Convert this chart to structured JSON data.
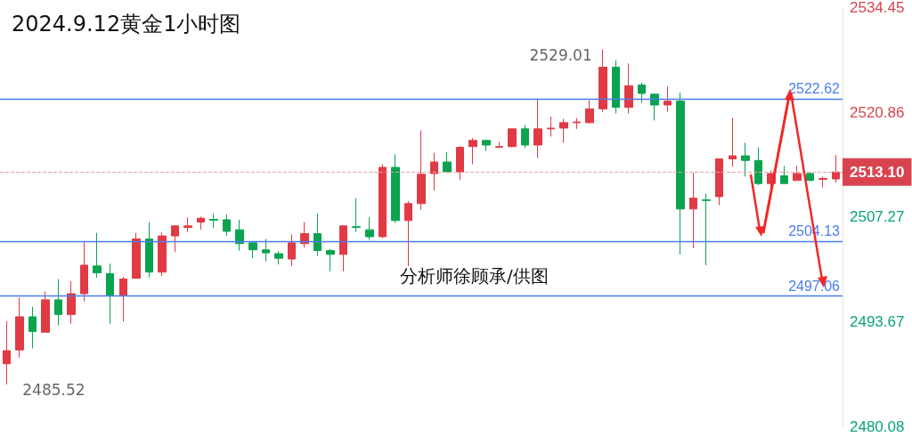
{
  "chart_data": {
    "type": "candlestick",
    "title": "2024.9.12黄金1小时图",
    "categories": [
      null,
      null,
      null,
      null,
      null,
      null,
      null,
      null,
      null,
      null,
      null,
      null,
      null,
      null,
      null,
      null,
      null,
      null,
      null,
      null,
      null,
      null,
      null,
      null,
      null,
      null,
      null,
      null,
      null,
      null,
      null,
      null,
      null,
      null,
      null,
      null,
      null,
      null,
      null,
      null,
      null,
      null,
      null,
      null,
      null,
      null,
      null,
      null,
      null,
      null,
      null,
      null,
      null,
      null,
      null,
      null,
      null,
      null,
      null,
      null,
      null,
      null,
      null,
      null,
      null
    ],
    "ohlc": [
      [
        2488.2,
        2493.7,
        2485.52,
        2489.9
      ],
      [
        2490.0,
        2496.8,
        2489.0,
        2494.3
      ],
      [
        2494.3,
        2495.6,
        2490.2,
        2492.4
      ],
      [
        2492.3,
        2497.6,
        2492.3,
        2496.5
      ],
      [
        2496.5,
        2499.2,
        2493.2,
        2494.6
      ],
      [
        2494.6,
        2498.9,
        2493.4,
        2497.3
      ],
      [
        2497.3,
        2504.1,
        2496.3,
        2501.0
      ],
      [
        2500.9,
        2505.2,
        2499.4,
        2500.0
      ],
      [
        2499.9,
        2501.2,
        2493.4,
        2497.1
      ],
      [
        2497.1,
        2499.5,
        2493.7,
        2499.2
      ],
      [
        2499.3,
        2505.2,
        2499.3,
        2504.4
      ],
      [
        2504.4,
        2506.6,
        2499.4,
        2500.1
      ],
      [
        2500.1,
        2505.2,
        2499.6,
        2504.8
      ],
      [
        2504.8,
        2506.1,
        2502.7,
        2506.1
      ],
      [
        2505.9,
        2507.2,
        2505.3,
        2506.1
      ],
      [
        2506.6,
        2507.3,
        2505.6,
        2507.1
      ],
      [
        2506.95,
        2507.7,
        2505.8,
        2506.85
      ],
      [
        2506.9,
        2507.6,
        2504.8,
        2505.4
      ],
      [
        2505.6,
        2506.9,
        2502.9,
        2503.8
      ],
      [
        2503.9,
        2504.0,
        2501.9,
        2503.0
      ],
      [
        2503.0,
        2504.4,
        2501.5,
        2502.6
      ],
      [
        2502.5,
        2502.8,
        2501.1,
        2501.9
      ],
      [
        2501.8,
        2505.0,
        2500.9,
        2503.9
      ],
      [
        2503.8,
        2506.6,
        2503.3,
        2505.1
      ],
      [
        2505.1,
        2507.7,
        2502.2,
        2502.9
      ],
      [
        2502.9,
        2503.1,
        2500.2,
        2502.4
      ],
      [
        2502.4,
        2506.1,
        2500.2,
        2506.1
      ],
      [
        2506.0,
        2509.7,
        2505.3,
        2505.9
      ],
      [
        2505.6,
        2507.2,
        2504.3,
        2504.7
      ],
      [
        2504.7,
        2514.1,
        2504.5,
        2513.7
      ],
      [
        2513.7,
        2515.4,
        2506.5,
        2506.8
      ],
      [
        2506.8,
        2509.3,
        2500.9,
        2509.0
      ],
      [
        2509.0,
        2518.5,
        2508.2,
        2512.8
      ],
      [
        2512.9,
        2515.6,
        2510.7,
        2514.4
      ],
      [
        2514.4,
        2515.7,
        2513.0,
        2513.1
      ],
      [
        2513.1,
        2516.5,
        2512.1,
        2516.3
      ],
      [
        2516.4,
        2517.5,
        2514.1,
        2517.2
      ],
      [
        2517.2,
        2517.3,
        2515.8,
        2516.6
      ],
      [
        2516.3,
        2517.0,
        2516.3,
        2516.4
      ],
      [
        2516.4,
        2518.7,
        2516.3,
        2518.7
      ],
      [
        2518.7,
        2519.2,
        2516.2,
        2516.6
      ],
      [
        2516.6,
        2522.5,
        2514.9,
        2518.7
      ],
      [
        2518.7,
        2520.3,
        2517.7,
        2518.8
      ],
      [
        2518.8,
        2520.0,
        2516.9,
        2519.5
      ],
      [
        2519.5,
        2520.1,
        2518.7,
        2519.6
      ],
      [
        2519.5,
        2522.4,
        2519.4,
        2521.3
      ],
      [
        2521.3,
        2529.01,
        2520.9,
        2526.7
      ],
      [
        2526.7,
        2527.6,
        2520.7,
        2521.5
      ],
      [
        2521.5,
        2527.2,
        2520.7,
        2524.3
      ],
      [
        2524.4,
        2524.7,
        2522.1,
        2523.3
      ],
      [
        2523.2,
        2523.3,
        2519.8,
        2521.8
      ],
      [
        2521.8,
        2524.2,
        2520.9,
        2522.3
      ],
      [
        2522.3,
        2523.4,
        2502.4,
        2508.3
      ],
      [
        2508.3,
        2513.0,
        2503.2,
        2509.7
      ],
      [
        2509.5,
        2510.3,
        2501.0,
        2509.4
      ],
      [
        2509.9,
        2514.8,
        2508.8,
        2514.8
      ],
      [
        2514.8,
        2520.1,
        2513.8,
        2515.2
      ],
      [
        2515.2,
        2516.9,
        2512.5,
        2514.6
      ],
      [
        2514.6,
        2516.3,
        2511.4,
        2511.6
      ],
      [
        2511.6,
        2513.3,
        2509.9,
        2512.9
      ],
      [
        2512.6,
        2513.9,
        2511.6,
        2511.6
      ],
      [
        2512.0,
        2513.9,
        2512.0,
        2512.9
      ],
      [
        2512.9,
        2513.1,
        2511.9,
        2512.0
      ],
      [
        2512.15,
        2512.5,
        2511.1,
        2512.25
      ],
      [
        2512.2,
        2515.3,
        2511.7,
        2513.1
      ]
    ],
    "colors": [
      "#e03a45",
      "#e03a45",
      "#0aa350",
      "#e03a45",
      "#0aa350",
      "#e03a45",
      "#e03a45",
      "#0aa350",
      "#0aa350",
      "#e03a45",
      "#e03a45",
      "#0aa350",
      "#e03a45",
      "#e03a45",
      "#e03a45",
      "#e03a45",
      "#0aa350",
      "#0aa350",
      "#0aa350",
      "#0aa350",
      "#0aa350",
      "#0aa350",
      "#e03a45",
      "#e03a45",
      "#0aa350",
      "#0aa350",
      "#e03a45",
      "#0aa350",
      "#0aa350",
      "#e03a45",
      "#0aa350",
      "#e03a45",
      "#e03a45",
      "#e03a45",
      "#0aa350",
      "#e03a45",
      "#e03a45",
      "#0aa350",
      "#e03a45",
      "#e03a45",
      "#0aa350",
      "#e03a45",
      "#e03a45",
      "#e03a45",
      "#e03a45",
      "#e03a45",
      "#e03a45",
      "#0aa350",
      "#e03a45",
      "#0aa350",
      "#0aa350",
      "#e03a45",
      "#0aa350",
      "#e03a45",
      "#0aa350",
      "#e03a45",
      "#e03a45",
      "#0aa350",
      "#0aa350",
      "#e03a45",
      "#0aa350",
      "#e03a45",
      "#0aa350",
      "#e03a45",
      "#e03a45"
    ],
    "ylim": [
      2480.08,
      2534.45
    ],
    "yticks": [
      2480.08,
      2493.67,
      2507.27,
      2520.86,
      2534.45
    ],
    "tick_labels": "y",
    "grid": false,
    "ref_lines": [
      {
        "axis": "y",
        "value": 2522.62,
        "label": "2522.62",
        "color": "#4a7cf0",
        "line_style": "solid"
      },
      {
        "axis": "y",
        "value": 2504.13,
        "label": "2504.13",
        "color": "#4a7cf0",
        "line_style": "solid"
      },
      {
        "axis": "y",
        "value": 2497.06,
        "label": "2497.06",
        "color": "#4a7cf0",
        "line_style": "solid"
      },
      {
        "axis": "y",
        "value": 2513.1,
        "label": "2513.10",
        "color": "#e8a0a6",
        "line_style": "dashed"
      }
    ],
    "annotations": [
      "分析师徐顾承/供图",
      "2529.01",
      "2485.52"
    ]
  }
}
